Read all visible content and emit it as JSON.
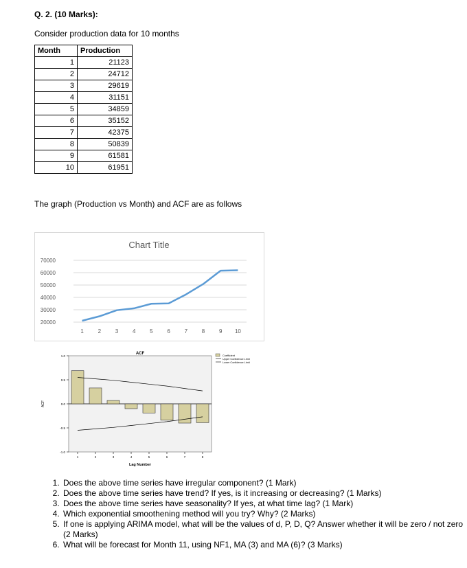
{
  "heading": "Q. 2.  (10 Marks):",
  "intro": "Consider production data for 10 months",
  "table": {
    "headers": [
      "Month",
      "Production"
    ],
    "rows": [
      [
        "1",
        "21123"
      ],
      [
        "2",
        "24712"
      ],
      [
        "3",
        "29619"
      ],
      [
        "4",
        "31151"
      ],
      [
        "5",
        "34859"
      ],
      [
        "6",
        "35152"
      ],
      [
        "7",
        "42375"
      ],
      [
        "8",
        "50839"
      ],
      [
        "9",
        "61581"
      ],
      [
        "10",
        "61951"
      ]
    ]
  },
  "graph_text": "The graph (Production vs Month) and ACF are as follows",
  "chart_data": [
    {
      "type": "line",
      "title": "Chart Title",
      "x": [
        1,
        2,
        3,
        4,
        5,
        6,
        7,
        8,
        9,
        10
      ],
      "y": [
        21123,
        24712,
        29619,
        31151,
        34859,
        35152,
        42375,
        50839,
        61581,
        61951
      ],
      "ylim": [
        20000,
        70000
      ],
      "yticks": [
        "70000",
        "60000",
        "50000",
        "40000",
        "30000",
        "20000"
      ],
      "xticks": [
        "1",
        "2",
        "3",
        "4",
        "5",
        "6",
        "7",
        "8",
        "9",
        "10"
      ],
      "color": "#5b9bd5",
      "grid": true
    },
    {
      "type": "bar",
      "title": "ACF",
      "categories": [
        "1",
        "2",
        "3",
        "4",
        "5",
        "6",
        "7",
        "8"
      ],
      "values": [
        0.69,
        0.33,
        0.07,
        -0.1,
        -0.19,
        -0.34,
        -0.4,
        -0.39
      ],
      "upper_limit": [
        0.55,
        0.52,
        0.49,
        0.45,
        0.41,
        0.37,
        0.32,
        0.27
      ],
      "lower_limit": [
        -0.55,
        -0.52,
        -0.49,
        -0.45,
        -0.41,
        -0.37,
        -0.32,
        -0.27
      ],
      "ylim": [
        -1.0,
        1.0
      ],
      "yticks": [
        "1.0",
        "0.5",
        "0.0",
        "-0.5",
        "-1.0"
      ],
      "ylabel": "ACF",
      "xlabel": "Lag Number",
      "legend": [
        "Coefficient",
        "Upper Confidence Limit",
        "Lower Confidence Limit"
      ],
      "legend_position": "top-right",
      "bar_color": "#d6d0a0"
    }
  ],
  "questions": [
    "Does the above time series have irregular component? (1 Mark)",
    "Does the above time series have trend? If yes, is it increasing or decreasing? (1 Marks)",
    "Does the above time series have seasonality? If yes, at what time lag? (1 Mark)",
    "Which exponential smoothening method will you try? Why? (2 Marks)",
    "If one is applying ARIMA model, what will be the values of d, P, D, Q? Answer whether it will be zero / not zero (2 Marks)",
    "What will be forecast for Month 11, using NF1, MA (3) and MA (6)? (3 Marks)"
  ]
}
